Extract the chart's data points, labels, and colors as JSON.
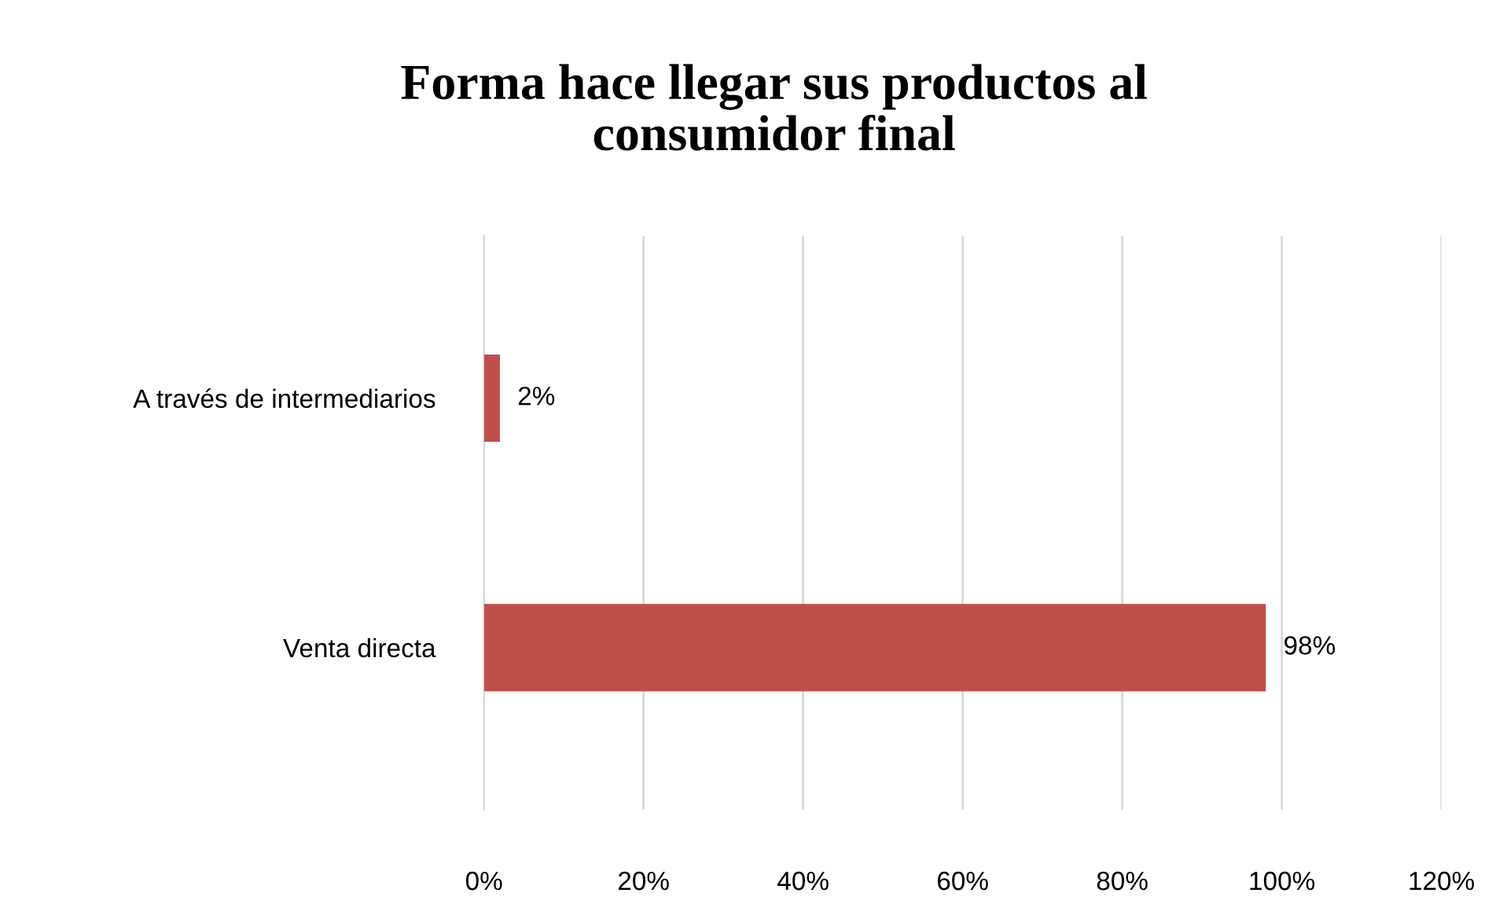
{
  "chart_data": {
    "type": "bar",
    "orientation": "horizontal",
    "title": "Forma hace llegar sus productos al\nconsumidor final",
    "categories": [
      "A través de intermediarios",
      "Venta directa"
    ],
    "values": [
      2,
      98
    ],
    "color": "#c0504d",
    "value_labels": [
      "2%",
      "98%"
    ],
    "xlim": [
      0,
      120
    ],
    "xticks": [
      {
        "value": 0,
        "label": "0%"
      },
      {
        "value": 20,
        "label": "20%"
      },
      {
        "value": 40,
        "label": "40%"
      },
      {
        "value": 60,
        "label": "60%"
      },
      {
        "value": 80,
        "label": "80%"
      },
      {
        "value": 100,
        "label": "100%"
      },
      {
        "value": 120,
        "label": "120%"
      }
    ],
    "grid": "x",
    "legend": false
  }
}
